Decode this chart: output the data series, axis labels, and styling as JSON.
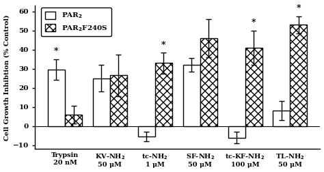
{
  "groups": [
    "Trypsin\n20 nM",
    "KV-NH$_2$\n50 μM",
    "tc-NH$_2$\n1 μM",
    "SF-NH$_2$\n50 μM",
    "tc-KF-NH$_2$\n100 μM",
    "TL-NH$_2$\n50 μM"
  ],
  "par2_values": [
    29.5,
    25.0,
    -5.5,
    32.0,
    -6.0,
    8.0
  ],
  "par2_errors": [
    5.5,
    7.0,
    2.5,
    3.5,
    3.0,
    5.0
  ],
  "par2f240s_values": [
    6.0,
    26.5,
    33.0,
    46.0,
    41.0,
    53.0
  ],
  "par2f240s_errors": [
    4.5,
    11.0,
    5.5,
    10.0,
    9.0,
    4.5
  ],
  "par2_sig": [
    true,
    false,
    false,
    false,
    false,
    false
  ],
  "par2f240s_sig": [
    false,
    false,
    true,
    false,
    true,
    true
  ],
  "ylim": [
    -12,
    63
  ],
  "yticks": [
    -10,
    0,
    10,
    20,
    30,
    40,
    50,
    60
  ],
  "ylabel": "Cell Growth Inhibtion (% Control)",
  "bar_width": 0.38,
  "par2_color": "white",
  "edge_color": "black",
  "legend_par2": "PAR$_2$",
  "legend_par2f240s": "PAR$_2$F240S",
  "background_color": "white"
}
